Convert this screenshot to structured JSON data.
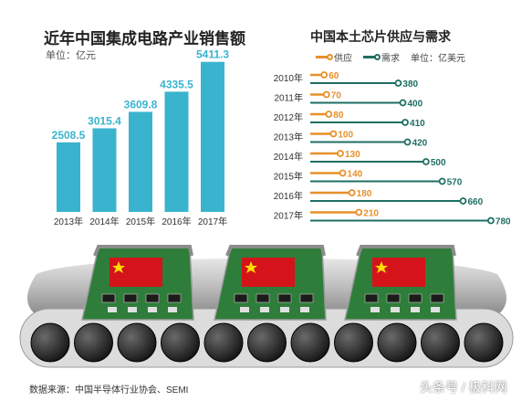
{
  "colors": {
    "bar": "#3ab4ce",
    "bar_label": "#3ab4ce",
    "supply": "#e8902a",
    "demand": "#1f6f64",
    "conveyor": "#2a2a2a",
    "board": "#2f7d3a",
    "flag": "#d4141a",
    "star": "#ffde00"
  },
  "chart_data": [
    {
      "type": "bar",
      "title": "近年中国集成电路产业销售额",
      "unit": "单位：亿元",
      "categories": [
        "2013年",
        "2014年",
        "2015年",
        "2016年",
        "2017年"
      ],
      "values": [
        2508.5,
        3015.4,
        3609.8,
        4335.5,
        5411.3
      ],
      "value_labels": [
        "2508.5",
        "3015.4",
        "3609.8",
        "4335.5",
        "5411.3"
      ],
      "ylim": [
        0,
        5600
      ]
    },
    {
      "type": "line",
      "subtype": "horizontal-lollipop",
      "title": "中国本土芯片供应与需求",
      "unit": "单位：亿美元",
      "categories": [
        "2010年",
        "2011年",
        "2012年",
        "2013年",
        "2014年",
        "2015年",
        "2016年",
        "2017年"
      ],
      "series": [
        {
          "name": "供应",
          "values": [
            60,
            70,
            80,
            100,
            130,
            140,
            180,
            210
          ],
          "labels": [
            "60",
            "70",
            "80",
            "100",
            "130",
            "140",
            "180",
            "210"
          ]
        },
        {
          "name": "需求",
          "values": [
            380,
            400,
            410,
            420,
            500,
            570,
            660,
            780
          ],
          "labels": [
            "380",
            "400",
            "410",
            "420",
            "500",
            "570",
            "660",
            "780"
          ]
        }
      ],
      "xlim": [
        0,
        800
      ]
    }
  ],
  "footer": {
    "source": "数据来源：中国半导体行业协会、SEMI",
    "brand": "头条号 / 极科网"
  }
}
